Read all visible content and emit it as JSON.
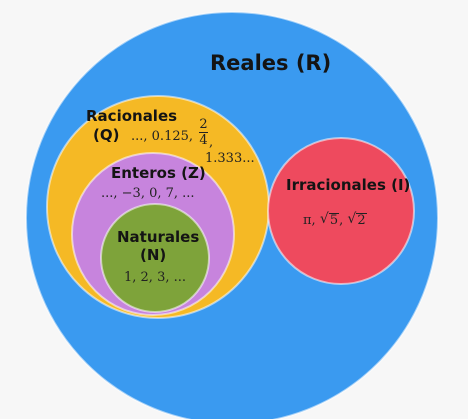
{
  "sets": {
    "reales": {
      "title": "Reales (R)",
      "color": "#3a9af0"
    },
    "racionales": {
      "title": "Racionales",
      "symbol": "(Q)",
      "color": "#f5b925",
      "examples_a": "..., 0.125,",
      "frac_num": "2",
      "frac_den": "4",
      "frac_comma": ",",
      "examples_b": "1.333..."
    },
    "enteros": {
      "title": "Enteros (Z)",
      "color": "#c784dd",
      "examples": "..., −3, 0, 7, ..."
    },
    "naturales": {
      "title": "Naturales",
      "symbol": "(N)",
      "color": "#7ea33a",
      "examples": "1, 2, 3, ..."
    },
    "irracionales": {
      "title": "Irracionales (I)",
      "color": "#ee4a5e",
      "pi": "π,",
      "root1": "5",
      "sep": ",",
      "root2": "2",
      "radical": "√"
    }
  }
}
